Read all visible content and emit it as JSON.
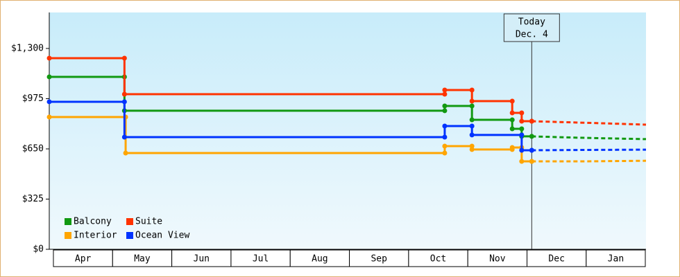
{
  "chart_data": {
    "type": "step-line",
    "categories": [
      "Apr",
      "May",
      "Jun",
      "Jul",
      "Aug",
      "Sep",
      "Oct",
      "Nov",
      "Dec",
      "Jan"
    ],
    "xlim": [
      -0.07,
      10.01
    ],
    "ylim": [
      0,
      1533
    ],
    "yticks": [
      {
        "value": 0,
        "label": "$0"
      },
      {
        "value": 325,
        "label": "$325"
      },
      {
        "value": 650,
        "label": "$650"
      },
      {
        "value": 975,
        "label": "$975"
      },
      {
        "value": 1300,
        "label": "$1,300"
      }
    ],
    "today": {
      "x": 8.08,
      "label": [
        "Today",
        "Dec. 4"
      ]
    },
    "series": [
      {
        "name": "Balcony",
        "color": "#119911",
        "x": [
          -0.07,
          1.2,
          6.61,
          7.07,
          7.75,
          7.91,
          8.08
        ],
        "values": [
          1116,
          897,
          928,
          838,
          780,
          731,
          731
        ],
        "projected_x": [
          8.08,
          8.9,
          10.01
        ],
        "projected_values": [
          731,
          722,
          713
        ]
      },
      {
        "name": "Suite",
        "color": "#ff3300",
        "x": [
          -0.07,
          1.2,
          6.61,
          7.07,
          7.75,
          7.91,
          8.08
        ],
        "values": [
          1237,
          1004,
          1031,
          959,
          883,
          829,
          829
        ],
        "projected_x": [
          8.08,
          8.9,
          10.01
        ],
        "projected_values": [
          829,
          820,
          807
        ]
      },
      {
        "name": "Interior",
        "color": "#ffa500",
        "x": [
          -0.07,
          1.22,
          6.61,
          7.07,
          7.75,
          7.91,
          8.08
        ],
        "values": [
          856,
          623,
          668,
          646,
          659,
          569,
          569
        ],
        "projected_x": [
          8.08,
          8.9,
          10.01
        ],
        "projected_values": [
          569,
          569,
          573
        ]
      },
      {
        "name": "Ocean View",
        "color": "#0033ff",
        "x": [
          -0.07,
          1.2,
          6.61,
          7.07,
          7.91,
          8.08
        ],
        "values": [
          955,
          726,
          798,
          740,
          641,
          641
        ],
        "projected_x": [
          8.08,
          8.9,
          10.01
        ],
        "projected_values": [
          641,
          643,
          645
        ]
      }
    ]
  }
}
